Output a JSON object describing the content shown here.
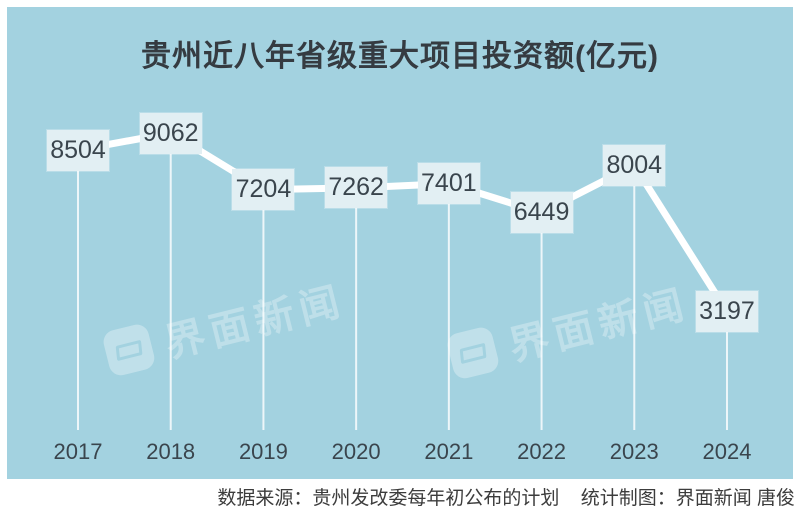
{
  "title": "贵州近八年省级重大项目投资额(亿元)",
  "watermark": {
    "text": "界面新闻"
  },
  "footer": {
    "source_label": "数据来源：贵州发改委每年初公布的计划",
    "credit_label": "统计制图：界面新闻 唐俊"
  },
  "colors": {
    "panel_bg": "#a3d2e0",
    "label_box_bg": "#e2eff3",
    "line": "#ffffff",
    "text_dark": "#3a454d",
    "title": "#353b41"
  },
  "chart_data": {
    "type": "line",
    "title": "贵州近八年省级重大项目投资额(亿元)",
    "categories": [
      "2017",
      "2018",
      "2019",
      "2020",
      "2021",
      "2022",
      "2023",
      "2024"
    ],
    "values": [
      8504,
      9062,
      7204,
      7262,
      7401,
      6449,
      8004,
      3197
    ],
    "xlabel": "",
    "ylabel": "",
    "unit": "亿元",
    "grid": false,
    "legend": false,
    "data_labels": "boxed",
    "source": "数据来源：贵州发改委每年初公布的计划",
    "credit": "统计制图：界面新闻 唐俊"
  }
}
